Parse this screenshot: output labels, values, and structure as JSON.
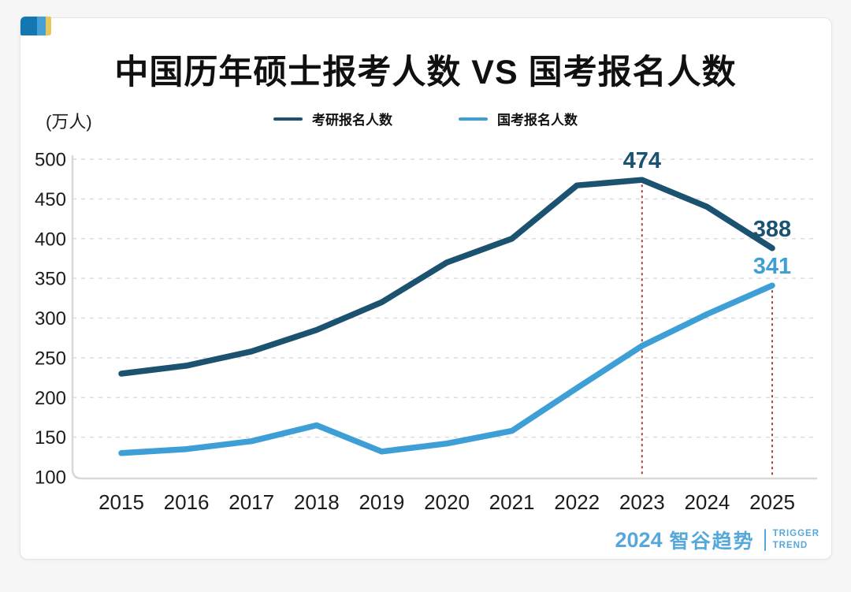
{
  "page": {
    "title": "中国历年硕士报考人数 VS 国考报名人数",
    "unit_label": "(万人)"
  },
  "legend": {
    "items": [
      {
        "label": "考研报名人数",
        "color": "#1a5270"
      },
      {
        "label": "国考报名人数",
        "color": "#3d9fd6"
      }
    ]
  },
  "chart_data": {
    "type": "line",
    "title": "中国历年硕士报考人数 VS 国考报名人数",
    "unit": "万人",
    "x": [
      "2015",
      "2016",
      "2017",
      "2018",
      "2019",
      "2020",
      "2021",
      "2022",
      "2023",
      "2024",
      "2025"
    ],
    "yticks": [
      500,
      450,
      400,
      350,
      300,
      250,
      200,
      150,
      100
    ],
    "ylim": [
      100,
      500
    ],
    "grid": "horizontal-dashed",
    "legend_position": "top-center",
    "series": [
      {
        "name": "考研报名人数",
        "color": "#1a5270",
        "values": [
          230,
          240,
          258,
          285,
          320,
          370,
          400,
          467,
          474,
          440,
          388
        ]
      },
      {
        "name": "国考报名人数",
        "color": "#3d9fd6",
        "values": [
          130,
          135,
          145,
          165,
          132,
          142,
          158,
          212,
          265,
          305,
          341
        ]
      }
    ],
    "annotations": [
      {
        "x": "2023",
        "series": "考研报名人数",
        "text": "474"
      },
      {
        "x": "2025",
        "series": "考研报名人数",
        "text": "388"
      },
      {
        "x": "2025",
        "series": "国考报名人数",
        "text": "341"
      }
    ],
    "guides": [
      {
        "x": "2023",
        "series": "考研报名人数",
        "style": "dotted",
        "color": "#a94438"
      },
      {
        "x": "2025",
        "series": "国考报名人数",
        "style": "dotted",
        "color": "#a94438"
      }
    ],
    "axis_color": "#d8d8d8",
    "grid_color": "#dcdcdc",
    "tick_color": "#1c1c1c"
  },
  "footer": {
    "brand_year": "2024",
    "brand_name": "智谷趋势",
    "brand_en_line1": "TRIGGER",
    "brand_en_line2": "TREND",
    "color": "#57a8da"
  },
  "brand": {
    "logo_colors": [
      "#1378b2",
      "#45a0d5",
      "#e6c85a"
    ]
  }
}
